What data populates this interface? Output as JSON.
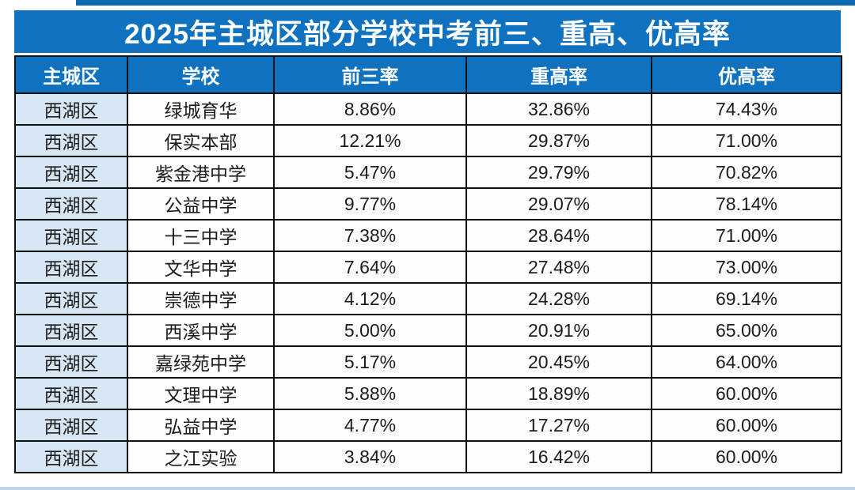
{
  "title": "2025年主城区部分学校中考前三、重高、优高率",
  "colors": {
    "header_blue": "#0e72c0",
    "region_cell_blue": "#d7e6f5",
    "border_black": "#101010",
    "title_text": "#ffffff"
  },
  "chart_data": {
    "type": "table",
    "title": "2025年主城区部分学校中考前三、重高、优高率",
    "columns": [
      "主城区",
      "学校",
      "前三率",
      "重高率",
      "优高率"
    ],
    "rows": [
      [
        "西湖区",
        "绿城育华",
        "8.86%",
        "32.86%",
        "74.43%"
      ],
      [
        "西湖区",
        "保实本部",
        "12.21%",
        "29.87%",
        "71.00%"
      ],
      [
        "西湖区",
        "紫金港中学",
        "5.47%",
        "29.79%",
        "70.82%"
      ],
      [
        "西湖区",
        "公益中学",
        "9.77%",
        "29.07%",
        "78.14%"
      ],
      [
        "西湖区",
        "十三中学",
        "7.38%",
        "28.64%",
        "71.00%"
      ],
      [
        "西湖区",
        "文华中学",
        "7.64%",
        "27.48%",
        "73.00%"
      ],
      [
        "西湖区",
        "崇德中学",
        "4.12%",
        "24.28%",
        "69.14%"
      ],
      [
        "西湖区",
        "西溪中学",
        "5.00%",
        "20.91%",
        "65.00%"
      ],
      [
        "西湖区",
        "嘉绿苑中学",
        "5.17%",
        "20.45%",
        "64.00%"
      ],
      [
        "西湖区",
        "文理中学",
        "5.88%",
        "18.89%",
        "60.00%"
      ],
      [
        "西湖区",
        "弘益中学",
        "4.77%",
        "17.27%",
        "60.00%"
      ],
      [
        "西湖区",
        "之江实验",
        "3.84%",
        "16.42%",
        "60.00%"
      ]
    ]
  }
}
